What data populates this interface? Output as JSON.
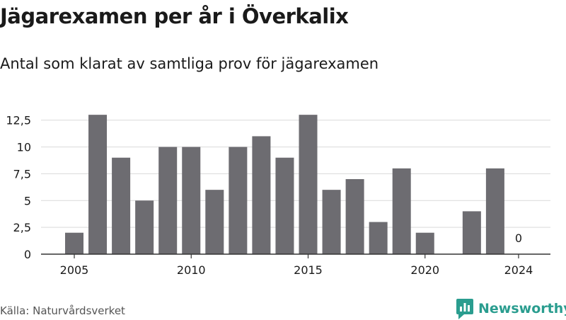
{
  "title": "Jägarexamen per år i Överkalix",
  "subtitle": "Antal som klarat av samtliga prov för jägarexamen",
  "source": "Källa: Naturvårdsverket",
  "brand": {
    "name": "Newsworthy",
    "color": "#2a9d8f"
  },
  "colors": {
    "bar": "#6d6c71",
    "grid": "#d9d9d9",
    "axis": "#333333",
    "text": "#1a1a1a"
  },
  "chart_data": {
    "type": "bar",
    "x": [
      2005,
      2006,
      2007,
      2008,
      2009,
      2010,
      2011,
      2012,
      2013,
      2014,
      2015,
      2016,
      2017,
      2018,
      2019,
      2020,
      2021,
      2022,
      2023,
      2024
    ],
    "values": [
      2,
      13,
      9,
      5,
      10,
      10,
      6,
      10,
      11,
      9,
      13,
      6,
      7,
      3,
      8,
      2,
      null,
      4,
      8,
      0
    ],
    "ylim": [
      0,
      14
    ],
    "yticks": [
      0,
      2.5,
      5,
      7.5,
      10,
      12.5
    ],
    "ytick_labels": [
      "0",
      "2,5",
      "5",
      "7,5",
      "10",
      "12,5"
    ],
    "xticks": [
      2005,
      2010,
      2015,
      2020,
      2024
    ],
    "xtick_labels": [
      "2005",
      "2010",
      "2015",
      "2020",
      "2024"
    ],
    "annotations": [
      {
        "x": 2024,
        "text": "0"
      }
    ],
    "grid": true
  }
}
